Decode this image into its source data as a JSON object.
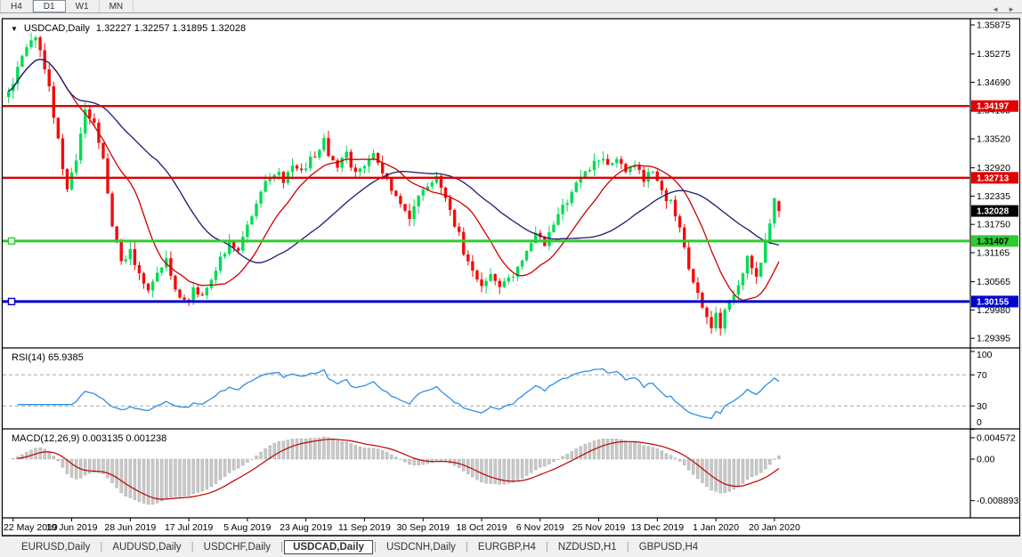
{
  "timeframe_tabs": {
    "items": [
      {
        "label": "H4",
        "active": false
      },
      {
        "label": "D1",
        "active": true
      },
      {
        "label": "W1",
        "active": false
      },
      {
        "label": "MN",
        "active": false
      }
    ]
  },
  "title": {
    "dropdown_icon": "symbol-dropdown",
    "symbol": "USDCAD,Daily",
    "ohlc": "1.32227 1.32257 1.31895 1.32028"
  },
  "price_axis": {
    "ticks": [
      "1.35875",
      "1.35275",
      "1.34690",
      "1.34105",
      "1.33520",
      "1.32920",
      "1.32335",
      "1.31750",
      "1.31165",
      "1.30565",
      "1.29980",
      "1.29395"
    ]
  },
  "levels": [
    {
      "label": "1.34197",
      "price": 1.34197,
      "line_color": "#E00000",
      "bg": "#E00000",
      "fg": "#FFFFFF",
      "width": 2.4,
      "marker": false
    },
    {
      "label": "1.32713",
      "price": 1.32713,
      "line_color": "#E00000",
      "bg": "#E00000",
      "fg": "#FFFFFF",
      "width": 2.4,
      "marker": false
    },
    {
      "label": "1.31407",
      "price": 1.31407,
      "line_color": "#2FCB2F",
      "bg": "#2FCB2F",
      "fg": "#000000",
      "width": 3,
      "marker": true
    },
    {
      "label": "1.30155",
      "price": 1.30155,
      "line_color": "#0000CD",
      "bg": "#0000CD",
      "fg": "#FFFFFF",
      "width": 3,
      "marker": true
    }
  ],
  "current_price": {
    "label": "1.32028",
    "price": 1.32028,
    "bg": "#000000",
    "fg": "#FFFFFF"
  },
  "chart_data": {
    "type": "candlestick",
    "symbol": "USDCAD",
    "timeframe": "Daily",
    "bars": 172,
    "price_range": {
      "top": 1.35875,
      "bottom": 1.29395
    },
    "last_bar": {
      "open": 1.32227,
      "high": 1.32257,
      "low": 1.31895,
      "close": 1.32028
    },
    "up_color": "#00DC55",
    "down_color": "#F40B0B",
    "anchors": [
      [
        0,
        1.3445
      ],
      [
        2,
        1.3495
      ],
      [
        4,
        1.354
      ],
      [
        6,
        1.3568
      ],
      [
        8,
        1.3495
      ],
      [
        10,
        1.3405
      ],
      [
        12,
        1.329
      ],
      [
        13,
        1.3245
      ],
      [
        15,
        1.331
      ],
      [
        17,
        1.342
      ],
      [
        19,
        1.338
      ],
      [
        21,
        1.331
      ],
      [
        23,
        1.318
      ],
      [
        25,
        1.3095
      ],
      [
        27,
        1.312
      ],
      [
        29,
        1.307
      ],
      [
        31,
        1.3042
      ],
      [
        33,
        1.3075
      ],
      [
        35,
        1.31
      ],
      [
        37,
        1.3045
      ],
      [
        39,
        1.3018
      ],
      [
        41,
        1.3035
      ],
      [
        43,
        1.302
      ],
      [
        45,
        1.306
      ],
      [
        47,
        1.31
      ],
      [
        49,
        1.314
      ],
      [
        51,
        1.312
      ],
      [
        53,
        1.317
      ],
      [
        55,
        1.322
      ],
      [
        57,
        1.326
      ],
      [
        59,
        1.3285
      ],
      [
        61,
        1.327
      ],
      [
        63,
        1.33
      ],
      [
        65,
        1.3285
      ],
      [
        67,
        1.331
      ],
      [
        69,
        1.333
      ],
      [
        70,
        1.335
      ],
      [
        71,
        1.331
      ],
      [
        73,
        1.329
      ],
      [
        75,
        1.332
      ],
      [
        77,
        1.3285
      ],
      [
        79,
        1.33
      ],
      [
        81,
        1.332
      ],
      [
        83,
        1.328
      ],
      [
        85,
        1.325
      ],
      [
        87,
        1.3215
      ],
      [
        89,
        1.319
      ],
      [
        91,
        1.323
      ],
      [
        93,
        1.3255
      ],
      [
        95,
        1.3268
      ],
      [
        97,
        1.3225
      ],
      [
        99,
        1.318
      ],
      [
        101,
        1.312
      ],
      [
        103,
        1.308
      ],
      [
        105,
        1.305
      ],
      [
        107,
        1.3065
      ],
      [
        109,
        1.3045
      ],
      [
        111,
        1.306
      ],
      [
        113,
        1.3085
      ],
      [
        115,
        1.312
      ],
      [
        117,
        1.3155
      ],
      [
        119,
        1.314
      ],
      [
        121,
        1.3175
      ],
      [
        123,
        1.321
      ],
      [
        125,
        1.3245
      ],
      [
        127,
        1.327
      ],
      [
        129,
        1.3295
      ],
      [
        131,
        1.331
      ],
      [
        133,
        1.33
      ],
      [
        135,
        1.3315
      ],
      [
        137,
        1.329
      ],
      [
        139,
        1.33
      ],
      [
        141,
        1.3265
      ],
      [
        143,
        1.328
      ],
      [
        145,
        1.3245
      ],
      [
        147,
        1.322
      ],
      [
        149,
        1.316
      ],
      [
        151,
        1.309
      ],
      [
        153,
        1.303
      ],
      [
        155,
        1.2985
      ],
      [
        156,
        1.296
      ],
      [
        157,
        1.2992
      ],
      [
        158,
        1.2968
      ],
      [
        159,
        1.2998
      ],
      [
        161,
        1.303
      ],
      [
        163,
        1.308
      ],
      [
        164,
        1.3105
      ],
      [
        166,
        1.3062
      ],
      [
        168,
        1.3135
      ],
      [
        169,
        1.318
      ],
      [
        170,
        1.3228
      ],
      [
        171,
        1.32028
      ]
    ],
    "moving_averages": [
      {
        "type": "sma",
        "period": 13,
        "color": "#CC0000"
      },
      {
        "type": "sma",
        "period": 34,
        "color": "#1B1B70"
      }
    ],
    "x_labels": [
      {
        "bar": 1,
        "label": "22 May 2019"
      },
      {
        "bar": 14,
        "label": "10 Jun 2019"
      },
      {
        "bar": 27,
        "label": "28 Jun 2019"
      },
      {
        "bar": 40,
        "label": "17 Jul 2019"
      },
      {
        "bar": 53,
        "label": "5 Aug 2019"
      },
      {
        "bar": 66,
        "label": "23 Aug 2019"
      },
      {
        "bar": 79,
        "label": "11 Sep 2019"
      },
      {
        "bar": 92,
        "label": "30 Sep 2019"
      },
      {
        "bar": 105,
        "label": "18 Oct 2019"
      },
      {
        "bar": 118,
        "label": "6 Nov 2019"
      },
      {
        "bar": 131,
        "label": "25 Nov 2019"
      },
      {
        "bar": 144,
        "label": "13 Dec 2019"
      },
      {
        "bar": 157,
        "label": "1 Jan 2020"
      },
      {
        "bar": 170,
        "label": "20 Jan 2020"
      }
    ]
  },
  "rsi": {
    "label": "RSI(14) 65.9385",
    "period": 14,
    "value": 65.9385,
    "line_color": "#2E8FE8",
    "ticks": [
      {
        "v": 100,
        "label": "100",
        "dashed": false
      },
      {
        "v": 70,
        "label": "70",
        "dashed": true
      },
      {
        "v": 30,
        "label": "30",
        "dashed": true
      },
      {
        "v": 0,
        "label": "0",
        "dashed": false
      }
    ]
  },
  "macd": {
    "label": "MACD(12,26,9) 0.003135 0.001238",
    "params": [
      12,
      26,
      9
    ],
    "main_value": 0.003135,
    "signal_value": 0.001238,
    "hist_color": "#C9C9C9",
    "hist_stroke": "#9F9F9F",
    "signal_color": "#C00000",
    "ticks": [
      {
        "v": 0.004572,
        "label": "0.004572"
      },
      {
        "v": 0,
        "label": "0.00"
      },
      {
        "v": -0.008893,
        "label": "-0.008893"
      }
    ]
  },
  "bottom_tabs": {
    "items": [
      {
        "label": "EURUSD,Daily",
        "active": false
      },
      {
        "label": "AUDUSD,Daily",
        "active": false
      },
      {
        "label": "USDCHF,Daily",
        "active": false
      },
      {
        "label": "USDCAD,Daily",
        "active": true
      },
      {
        "label": "USDCNH,Daily",
        "active": false
      },
      {
        "label": "EURGBP,H4",
        "active": false
      },
      {
        "label": "NZDUSD,H1",
        "active": false
      },
      {
        "label": "GBPUSD,H4",
        "active": false
      }
    ],
    "scroll_left": "◄",
    "scroll_right": "►"
  }
}
